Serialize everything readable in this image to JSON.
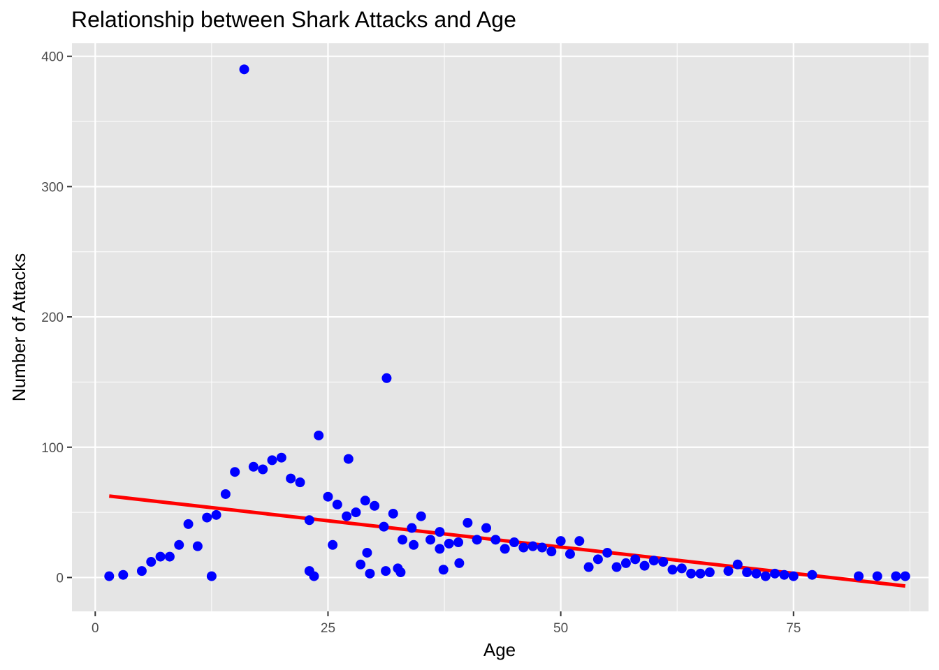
{
  "chart_data": {
    "type": "scatter",
    "title": "Relationship between Shark Attacks and Age",
    "xlabel": "Age",
    "ylabel": "Number of Attacks",
    "xlim": [
      -2.5,
      89.5
    ],
    "ylim": [
      -26,
      410
    ],
    "x_ticks": [
      0,
      25,
      50,
      75
    ],
    "x_tick_labels": [
      "0",
      "25",
      "50",
      "75"
    ],
    "y_ticks": [
      0,
      100,
      200,
      300,
      400
    ],
    "y_tick_labels": [
      "0",
      "100",
      "200",
      "300",
      "400"
    ],
    "grid": true,
    "legend": "none",
    "colors": {
      "panel": "#e5e5e5",
      "grid": "#ffffff",
      "points": "#0000ff",
      "trend": "#ff0000"
    },
    "points": [
      [
        1.5,
        1
      ],
      [
        3,
        2
      ],
      [
        5,
        5
      ],
      [
        6,
        12
      ],
      [
        7,
        16
      ],
      [
        8,
        16
      ],
      [
        9,
        25
      ],
      [
        10,
        41
      ],
      [
        11,
        24
      ],
      [
        12,
        46
      ],
      [
        12.5,
        1
      ],
      [
        13,
        48
      ],
      [
        14,
        64
      ],
      [
        15,
        81
      ],
      [
        16,
        390
      ],
      [
        17,
        85
      ],
      [
        18,
        83
      ],
      [
        19,
        90
      ],
      [
        20,
        92
      ],
      [
        21,
        76
      ],
      [
        22,
        73
      ],
      [
        23,
        44
      ],
      [
        23,
        5
      ],
      [
        23.5,
        1
      ],
      [
        24,
        109
      ],
      [
        25,
        62
      ],
      [
        25.5,
        25
      ],
      [
        26,
        56
      ],
      [
        27,
        47
      ],
      [
        27.2,
        91
      ],
      [
        28,
        50
      ],
      [
        28.5,
        10
      ],
      [
        29,
        59
      ],
      [
        29.2,
        19
      ],
      [
        29.5,
        3
      ],
      [
        30,
        55
      ],
      [
        31,
        39
      ],
      [
        31.2,
        5
      ],
      [
        31.3,
        153
      ],
      [
        32,
        49
      ],
      [
        32.5,
        7
      ],
      [
        32.8,
        4
      ],
      [
        33,
        29
      ],
      [
        34,
        38
      ],
      [
        34.2,
        25
      ],
      [
        35,
        47
      ],
      [
        36,
        29
      ],
      [
        37,
        35
      ],
      [
        37,
        22
      ],
      [
        37.4,
        6
      ],
      [
        38,
        26
      ],
      [
        39,
        27
      ],
      [
        39.1,
        11
      ],
      [
        40,
        42
      ],
      [
        41,
        29
      ],
      [
        42,
        38
      ],
      [
        43,
        29
      ],
      [
        44,
        22
      ],
      [
        45,
        27
      ],
      [
        46,
        23
      ],
      [
        47,
        24
      ],
      [
        48,
        23
      ],
      [
        49,
        20
      ],
      [
        50,
        28
      ],
      [
        51,
        18
      ],
      [
        52,
        28
      ],
      [
        53,
        8
      ],
      [
        54,
        14
      ],
      [
        55,
        19
      ],
      [
        56,
        8
      ],
      [
        57,
        11
      ],
      [
        58,
        14
      ],
      [
        59,
        9
      ],
      [
        60,
        13
      ],
      [
        61,
        12
      ],
      [
        62,
        6
      ],
      [
        63,
        7
      ],
      [
        64,
        3
      ],
      [
        65,
        3
      ],
      [
        66,
        4
      ],
      [
        68,
        5
      ],
      [
        69,
        10
      ],
      [
        70,
        4
      ],
      [
        71,
        3
      ],
      [
        72,
        1
      ],
      [
        73,
        3
      ],
      [
        74,
        2
      ],
      [
        75,
        1
      ],
      [
        77,
        2
      ],
      [
        82,
        1
      ],
      [
        84,
        1
      ],
      [
        86,
        1
      ],
      [
        87,
        1
      ]
    ],
    "trend_line": {
      "x": [
        1.5,
        87
      ],
      "y": [
        62.5,
        -6.5
      ]
    }
  }
}
